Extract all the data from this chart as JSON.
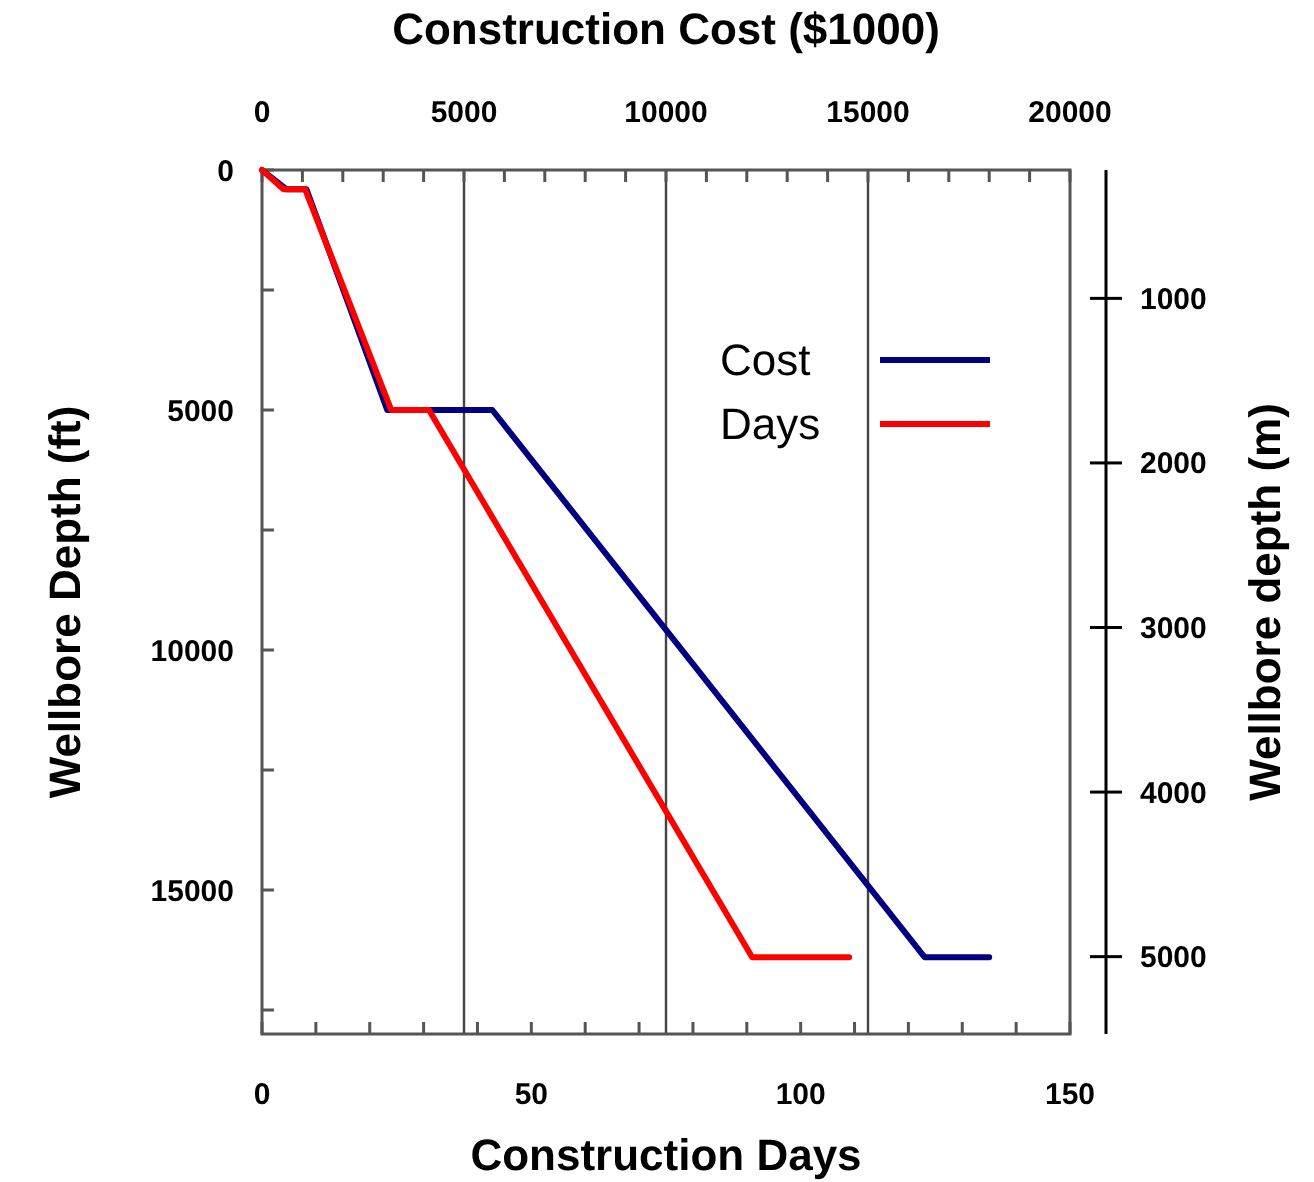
{
  "chart_data": {
    "type": "line",
    "xlabel": "Construction Days",
    "x2label": "Construction Cost ($1000)",
    "ylabel": "Wellbore Depth (ft)",
    "y2label": "Wellbore depth (m)",
    "xlim": [
      0,
      150
    ],
    "xticks": [
      0,
      {
        "value": 10,
        "label": null
      },
      {
        "value": 20,
        "label": null
      },
      {
        "value": 30,
        "label": null
      },
      {
        "value": 40,
        "label": null
      },
      50,
      {
        "value": 60,
        "label": null
      },
      {
        "value": 70,
        "label": null
      },
      {
        "value": 80,
        "label": null
      },
      {
        "value": 90,
        "label": null
      },
      100,
      {
        "value": 110,
        "label": null
      },
      {
        "value": 120,
        "label": null
      },
      {
        "value": 130,
        "label": null
      },
      {
        "value": 140,
        "label": null
      },
      150
    ],
    "x2lim": [
      0,
      20000
    ],
    "x2ticks": [
      0,
      {
        "value": 1000,
        "label": null
      },
      {
        "value": 2000,
        "label": null
      },
      {
        "value": 3000,
        "label": null
      },
      {
        "value": 4000,
        "label": null
      },
      5000,
      {
        "value": 6000,
        "label": null
      },
      {
        "value": 7000,
        "label": null
      },
      {
        "value": 8000,
        "label": null
      },
      {
        "value": 9000,
        "label": null
      },
      10000,
      {
        "value": 11000,
        "label": null
      },
      {
        "value": 12000,
        "label": null
      },
      {
        "value": 13000,
        "label": null
      },
      {
        "value": 14000,
        "label": null
      },
      15000,
      {
        "value": 16000,
        "label": null
      },
      {
        "value": 17000,
        "label": null
      },
      {
        "value": 18000,
        "label": null
      },
      {
        "value": 19000,
        "label": null
      },
      20000
    ],
    "ylim": [
      18000,
      0
    ],
    "yticks": [
      0,
      {
        "value": 2500,
        "label": null
      },
      5000,
      {
        "value": 7500,
        "label": null
      },
      10000,
      {
        "value": 12500,
        "label": null
      },
      15000,
      {
        "value": 17500,
        "label": null
      }
    ],
    "y2lim": [
      5470,
      220
    ],
    "y2ticks": [
      1000,
      2000,
      3000,
      4000,
      5000
    ],
    "grid": "x",
    "legend": "top right",
    "series": [
      {
        "name": "Cost",
        "color": "#000080",
        "axis": "x2",
        "x": [
          0,
          600,
          1100,
          3100,
          5700,
          16400,
          18000
        ],
        "values": [
          0,
          400,
          400,
          5000,
          5000,
          16400,
          16400
        ]
      },
      {
        "name": "Days",
        "color": "#ff0000",
        "x": [
          0,
          4,
          8,
          24,
          31,
          91,
          109
        ],
        "values": [
          0,
          400,
          400,
          5000,
          5000,
          16400,
          16400
        ]
      }
    ]
  }
}
